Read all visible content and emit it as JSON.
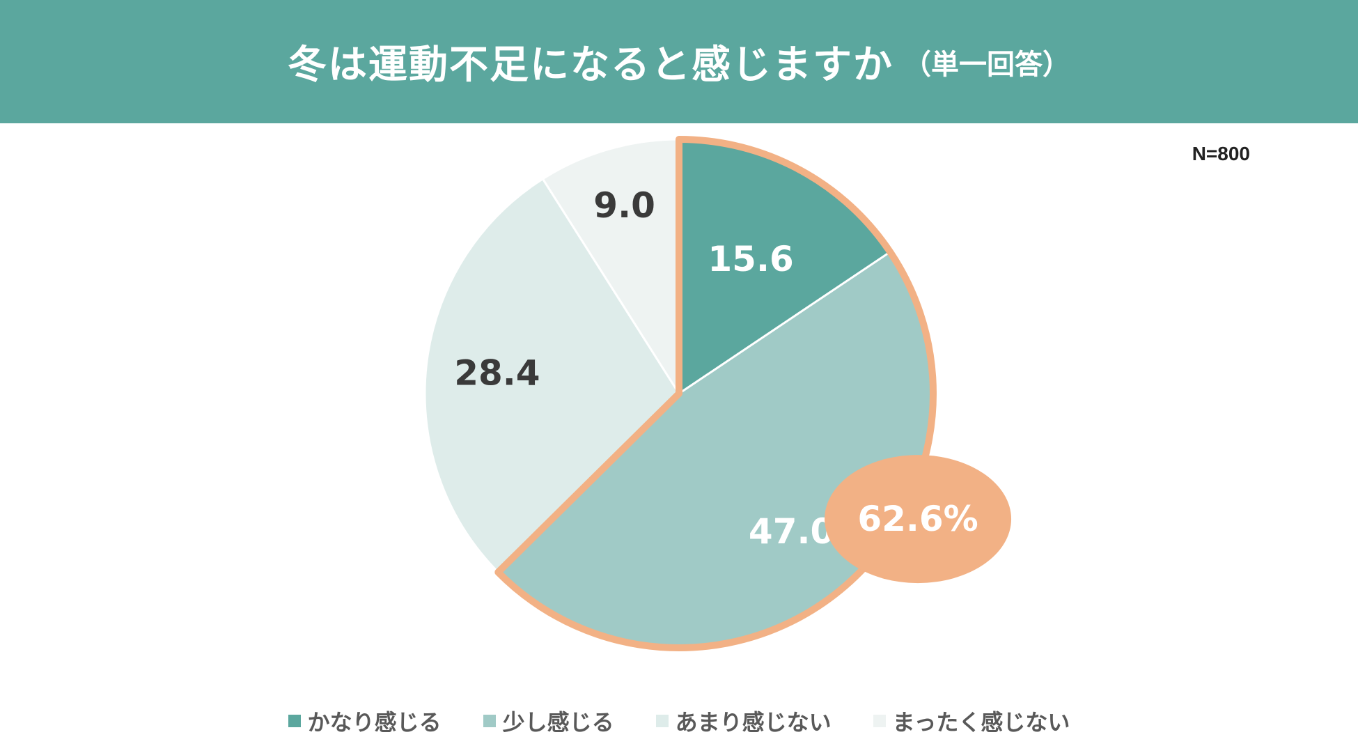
{
  "header": {
    "title": "冬は運動不足になると感じますか",
    "subtitle": "（単一回答）"
  },
  "sample_size": "N=800",
  "colors": {
    "header_bg": "#5ba79e",
    "highlight": "#f2b185"
  },
  "chart_data": {
    "type": "pie",
    "start_angle_deg": 0,
    "direction": "clockwise",
    "slices": [
      {
        "label": "かなり感じる",
        "value": 15.6,
        "value_label": "15.6",
        "color": "#5ba79e",
        "label_color": "#ffffff"
      },
      {
        "label": "少し感じる",
        "value": 47.0,
        "value_label": "47.0",
        "color": "#a0cac6",
        "label_color": "#ffffff"
      },
      {
        "label": "あまり感じない",
        "value": 28.4,
        "value_label": "28.4",
        "color": "#deecea",
        "label_color": "#3a3a3a"
      },
      {
        "label": "まったく感じない",
        "value": 9.0,
        "value_label": "9.0",
        "color": "#eef3f2",
        "label_color": "#3a3a3a"
      }
    ],
    "highlight": {
      "slices": [
        "かなり感じる",
        "少し感じる"
      ],
      "total_label": "62.6%",
      "color": "#f2b185"
    },
    "legend_position": "bottom"
  }
}
